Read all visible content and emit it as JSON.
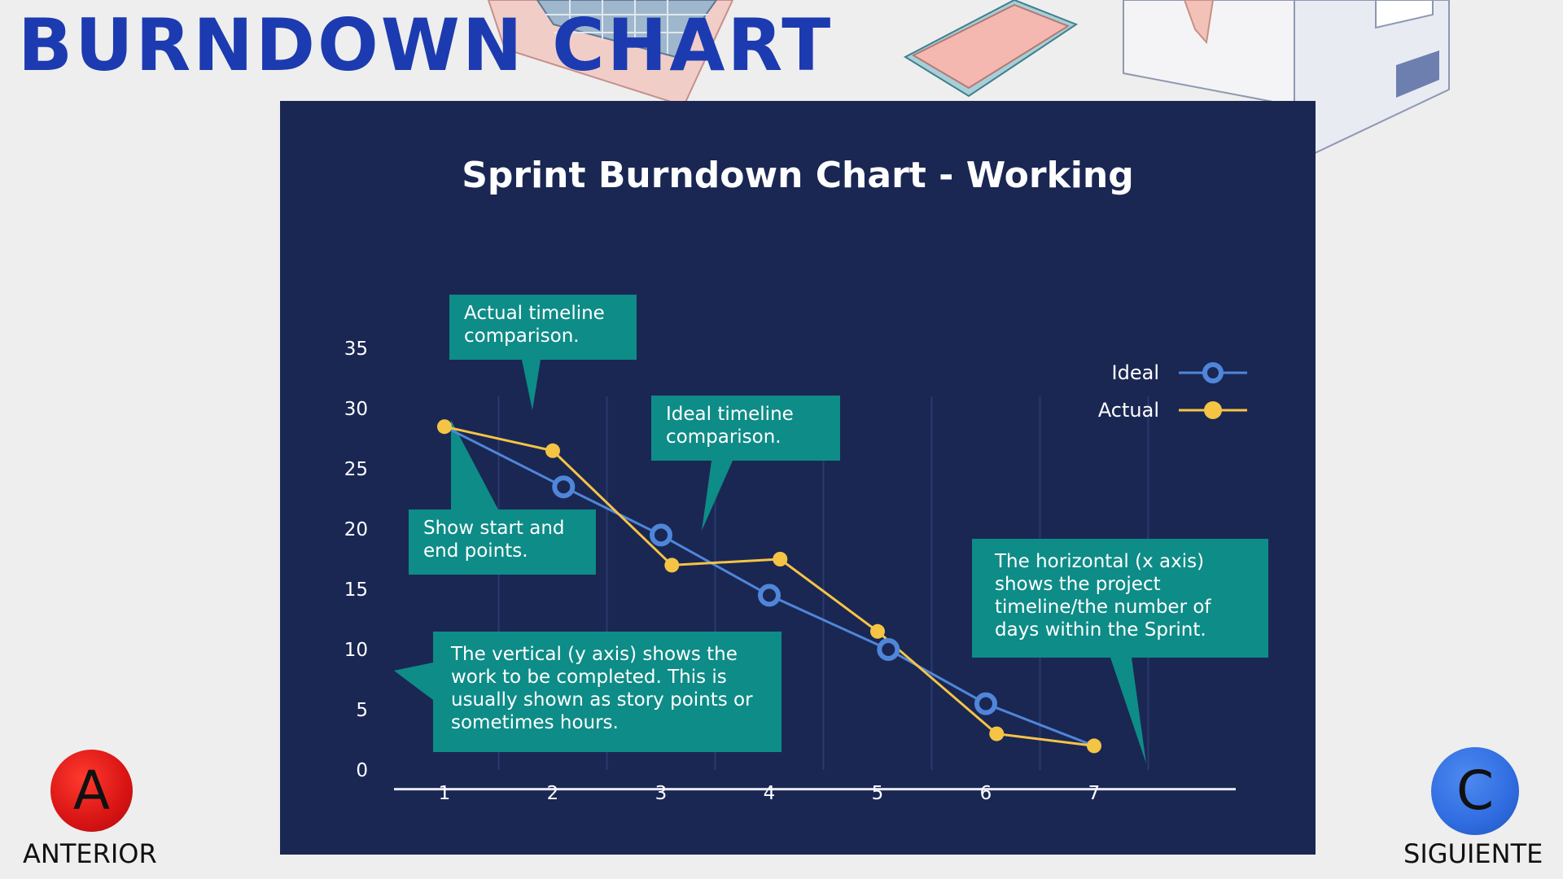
{
  "page": {
    "title": "BURNDOWN CHART"
  },
  "navigation": {
    "previous": {
      "letter": "A",
      "label": "ANTERIOR",
      "color": "#d81414"
    },
    "next": {
      "letter": "C",
      "label": "SIGUIENTE",
      "color": "#2f6ce0"
    }
  },
  "chart_data": {
    "type": "line",
    "title": "Sprint Burndown Chart - Working",
    "xlabel": "",
    "ylabel": "",
    "x": [
      1,
      2,
      3,
      4,
      5,
      6,
      7
    ],
    "x_ticks": [
      "1",
      "2",
      "3",
      "4",
      "5",
      "6",
      "7"
    ],
    "y_ticks": [
      "35",
      "30",
      "25",
      "20",
      "15",
      "10",
      "5",
      "0"
    ],
    "xlim": [
      1,
      7
    ],
    "ylim": [
      0,
      35
    ],
    "grid": "vertical",
    "legend_position": "top-right",
    "series": [
      {
        "name": "Ideal",
        "color": "#4f86d9",
        "x": [
          1,
          2.1,
          3.0,
          4.0,
          5.1,
          6.0,
          7.0
        ],
        "values": [
          28.5,
          23.5,
          19.5,
          14.5,
          10,
          5.5,
          2
        ]
      },
      {
        "name": "Actual",
        "color": "#f5c445",
        "x": [
          1,
          2.0,
          3.1,
          4.1,
          5.0,
          6.1,
          7.0
        ],
        "values": [
          28.5,
          26.5,
          17,
          17.5,
          11.5,
          3,
          2
        ]
      }
    ],
    "annotations": [
      {
        "id": "actual-timeline",
        "text": "Actual timeline comparison."
      },
      {
        "id": "ideal-timeline",
        "text": "Ideal timeline comparison."
      },
      {
        "id": "start-end",
        "text": "Show start and end points."
      },
      {
        "id": "y-axis",
        "text": "The vertical (y axis) shows the work to be completed. This is usually shown as story points or sometimes hours."
      },
      {
        "id": "x-axis",
        "text": "The horizontal (x axis) shows the project timeline/the number of days within the Sprint."
      }
    ]
  }
}
